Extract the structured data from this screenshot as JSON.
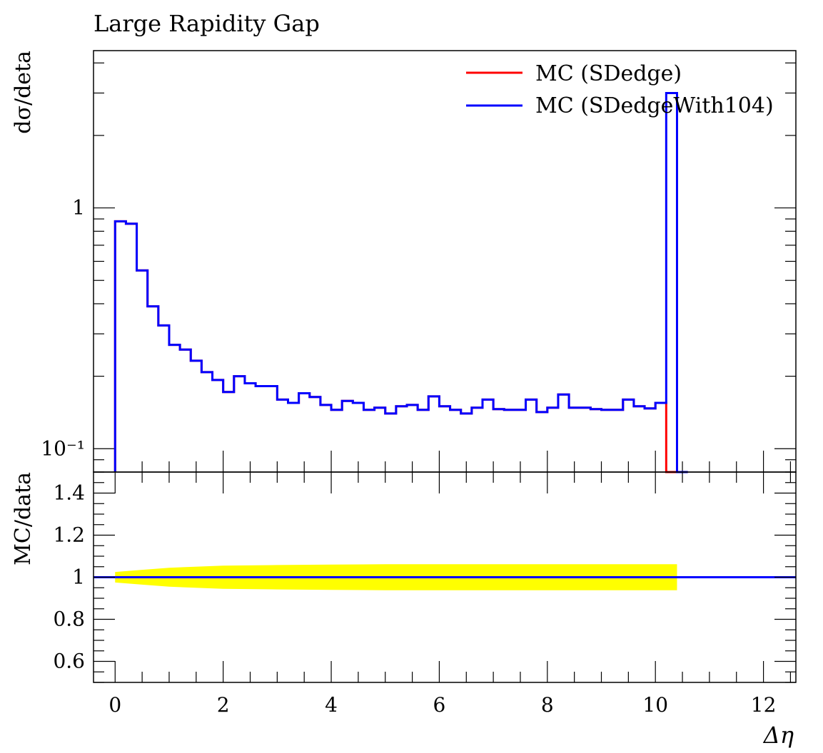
{
  "title": "Large Rapidity Gap",
  "chart_data": [
    {
      "type": "line",
      "subtype": "step-histogram",
      "ylabel": "dσ/deta",
      "yscale": "log",
      "xlim": [
        -0.4,
        12.6
      ],
      "ylim": [
        0.08,
        4.5
      ],
      "ytick_labels": [
        {
          "value": 1,
          "label": "1"
        },
        {
          "value": 0.1,
          "label": "10⁻¹"
        }
      ],
      "legend_position": "top-right",
      "bin_edges": [
        0,
        0.2,
        0.4,
        0.6,
        0.8,
        1.0,
        1.2,
        1.4,
        1.6,
        1.8,
        2.0,
        2.2,
        2.4,
        2.6,
        2.8,
        3.0,
        3.2,
        3.4,
        3.6,
        3.8,
        4.0,
        4.2,
        4.4,
        4.6,
        4.8,
        5.0,
        5.2,
        5.4,
        5.6,
        5.8,
        6.0,
        6.2,
        6.4,
        6.6,
        6.8,
        7.0,
        7.2,
        7.4,
        7.6,
        7.8,
        8.0,
        8.2,
        8.4,
        8.6,
        8.8,
        9.0,
        9.2,
        9.4,
        9.6,
        9.8,
        10.0,
        10.2,
        10.4,
        10.6
      ],
      "series": [
        {
          "name": "MC (SDedge)",
          "color": "#ff0000",
          "values": [
            0.88,
            0.86,
            0.55,
            0.39,
            0.325,
            0.27,
            0.258,
            0.232,
            0.208,
            0.193,
            0.172,
            0.2,
            0.187,
            0.182,
            0.182,
            0.16,
            0.155,
            0.17,
            0.164,
            0.152,
            0.145,
            0.158,
            0.155,
            0.145,
            0.148,
            0.14,
            0.15,
            0.152,
            0.145,
            0.165,
            0.15,
            0.145,
            0.14,
            0.148,
            0.16,
            0.146,
            0.145,
            0.145,
            0.16,
            0.142,
            0.148,
            0.168,
            0.148,
            0.148,
            0.146,
            0.145,
            0.145,
            0.16,
            0.15,
            0.147,
            0.155,
            0.07,
            0.07
          ]
        },
        {
          "name": "MC (SDedgeWith104)",
          "color": "#0000ff",
          "values": [
            0.88,
            0.86,
            0.55,
            0.39,
            0.325,
            0.27,
            0.258,
            0.232,
            0.208,
            0.193,
            0.172,
            0.2,
            0.187,
            0.182,
            0.182,
            0.16,
            0.155,
            0.17,
            0.164,
            0.152,
            0.145,
            0.158,
            0.155,
            0.145,
            0.148,
            0.14,
            0.15,
            0.152,
            0.145,
            0.165,
            0.15,
            0.145,
            0.14,
            0.148,
            0.16,
            0.146,
            0.145,
            0.145,
            0.16,
            0.142,
            0.148,
            0.168,
            0.148,
            0.148,
            0.146,
            0.145,
            0.145,
            0.16,
            0.15,
            0.147,
            0.155,
            3.0,
            0.07
          ]
        }
      ]
    },
    {
      "type": "area",
      "subtype": "ratio",
      "xlabel": "Δη",
      "ylabel": "MC/data",
      "xlim": [
        -0.4,
        12.6
      ],
      "ylim": [
        0.5,
        1.5
      ],
      "yticks": [
        0.6,
        0.8,
        1.0,
        1.2,
        1.4
      ],
      "ytick_labels": [
        "0.6",
        "0.8",
        "1",
        "1.2",
        "1.4"
      ],
      "xticks": [
        0,
        2,
        4,
        6,
        8,
        10,
        12
      ],
      "xtick_labels": [
        "0",
        "2",
        "4",
        "6",
        "8",
        "10",
        "12"
      ],
      "band_color": "#ffff00",
      "band_x": [
        0,
        0.5,
        1.0,
        2.0,
        3.0,
        4.0,
        5.0,
        6.0,
        7.0,
        8.0,
        9.0,
        10.0,
        10.4
      ],
      "band_half_width": [
        0.025,
        0.035,
        0.045,
        0.055,
        0.058,
        0.06,
        0.062,
        0.062,
        0.062,
        0.062,
        0.062,
        0.062,
        0.062
      ],
      "reference_line": {
        "y": 1.0,
        "color": "#0000ff"
      }
    }
  ]
}
